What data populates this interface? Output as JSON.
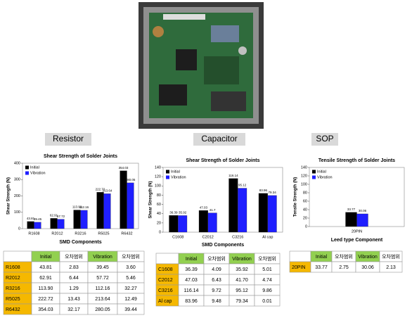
{
  "sections": [
    "Resistor",
    "Capacitor",
    "SOP"
  ],
  "chart_data": [
    {
      "type": "bar",
      "title": "Shear Strength of Solder Joints",
      "x_label": "SMD Components",
      "y_label": "Shear Strength (N)",
      "categories": [
        "R1608",
        "R2012",
        "R3216",
        "R5025",
        "R6432"
      ],
      "series": [
        {
          "name": "Initial",
          "color": "#000000",
          "values": [
            43.81,
            62.91,
            113.9,
            222.72,
            354.03
          ],
          "value_labels": [
            "43.81",
            "62.91",
            "113.90",
            "222.72",
            "354.03"
          ]
        },
        {
          "name": "Vibration",
          "color": "#1f1fff",
          "values": [
            39.45,
            57.72,
            112.16,
            213.64,
            280.05
          ],
          "value_labels": [
            "39.45",
            "57.72",
            "112.16",
            "213.64",
            "280.05"
          ]
        }
      ],
      "ylim": [
        0,
        400
      ],
      "yticks": [
        0,
        100,
        200,
        300,
        400
      ]
    },
    {
      "type": "bar",
      "title": "Shear Strength of Solder Joints",
      "x_label": "SMD Components",
      "y_label": "Shear Strength (N)",
      "categories": [
        "C1608",
        "C2012",
        "C3216",
        "Al cap"
      ],
      "series": [
        {
          "name": "Initial",
          "color": "#000000",
          "values": [
            36.39,
            47.03,
            116.14,
            83.96
          ],
          "value_labels": [
            "36.39",
            "47.03",
            "116.14",
            "83.96"
          ]
        },
        {
          "name": "Vibration",
          "color": "#1f1fff",
          "values": [
            35.92,
            41.7,
            95.12,
            79.34
          ],
          "value_labels": [
            "35.92",
            "41.7",
            "95.12",
            "79.34"
          ]
        }
      ],
      "ylim": [
        0,
        140
      ],
      "yticks": [
        0,
        20,
        40,
        60,
        80,
        100,
        120,
        140
      ]
    },
    {
      "type": "bar",
      "title": "Tensile Strength of Solder Joints",
      "x_label": "Leed type Component",
      "y_label": "Tensile Strength (N)",
      "categories": [
        "20PIN"
      ],
      "series": [
        {
          "name": "Initial",
          "color": "#000000",
          "values": [
            33.77
          ],
          "value_labels": [
            "33.77"
          ]
        },
        {
          "name": "Vibration",
          "color": "#1f1fff",
          "values": [
            30.06
          ],
          "value_labels": [
            "30.06"
          ]
        }
      ],
      "ylim": [
        0,
        140
      ],
      "yticks": [
        0,
        20,
        40,
        60,
        80,
        100,
        120,
        140
      ]
    }
  ],
  "tables": [
    {
      "header": [
        "",
        "Initial",
        "오차범위",
        "Vibration",
        "오차범위"
      ],
      "rows": [
        [
          "R1608",
          "43.81",
          "2.83",
          "39.45",
          "3.60"
        ],
        [
          "R2012",
          "62.91",
          "6.44",
          "57.72",
          "5.46"
        ],
        [
          "R3216",
          "113.90",
          "1.29",
          "112.16",
          "32.27"
        ],
        [
          "R5025",
          "222.72",
          "13.43",
          "213.64",
          "12.49"
        ],
        [
          "R6432",
          "354.03",
          "32.17",
          "280.05",
          "39.44"
        ]
      ]
    },
    {
      "header": [
        "",
        "Initial",
        "오차범위",
        "Vibration",
        "오차범위"
      ],
      "rows": [
        [
          "C1608",
          "36.39",
          "4.09",
          "35.92",
          "5.01"
        ],
        [
          "C2012",
          "47.03",
          "6.43",
          "41.70",
          "4.74"
        ],
        [
          "C3216",
          "116.14",
          "9.72",
          "95.12",
          "9.86"
        ],
        [
          "Al cap",
          "83.96",
          "9.48",
          "79.34",
          "0.01"
        ]
      ]
    },
    {
      "header": [
        "",
        "Initial",
        "오차범위",
        "Vibration",
        "오차범위"
      ],
      "rows": [
        [
          "20PIN",
          "33.77",
          "2.75",
          "30.06",
          "2.13"
        ]
      ]
    }
  ]
}
